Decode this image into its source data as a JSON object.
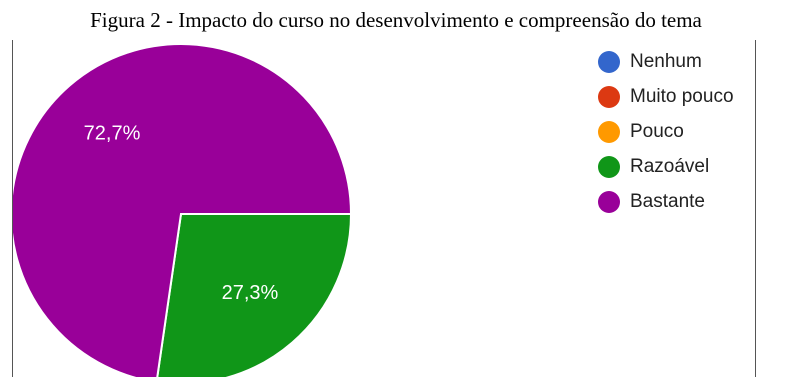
{
  "figure": {
    "caption": "Figura 2 - Impacto do curso no desenvolvimento e compreensão do tema"
  },
  "chart_data": {
    "type": "pie",
    "categories": [
      "Nenhum",
      "Muito pouco",
      "Pouco",
      "Razoável",
      "Bastante"
    ],
    "values": [
      0,
      0,
      0,
      27.3,
      72.7
    ],
    "value_labels": [
      "",
      "",
      "",
      "27,3%",
      "72,7%"
    ],
    "colors": [
      "#3366cc",
      "#dc3912",
      "#ff9900",
      "#109618",
      "#990099"
    ],
    "label_color": "#ffffff",
    "legend_position": "right"
  }
}
